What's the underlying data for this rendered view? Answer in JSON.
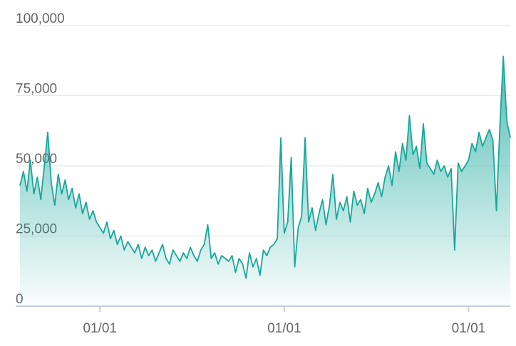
{
  "chart_data": {
    "type": "area",
    "color": "#17a79b",
    "grid": true,
    "ylim": [
      0,
      100000
    ],
    "yticks": [
      0,
      {
        "value": 25000,
        "label": "25,000"
      },
      {
        "value": 50000,
        "label": "50,000"
      },
      {
        "value": 75000,
        "label": "75,000"
      },
      {
        "value": 100000,
        "label": "100,000"
      }
    ],
    "categories": [
      null,
      null,
      null,
      null,
      null,
      null,
      null,
      null,
      null,
      null,
      null,
      null,
      null,
      null,
      null,
      null,
      null,
      null,
      null,
      null,
      null,
      null,
      null,
      "01/01",
      null,
      null,
      null,
      null,
      null,
      null,
      null,
      null,
      null,
      null,
      null,
      null,
      null,
      null,
      null,
      null,
      null,
      null,
      null,
      null,
      null,
      null,
      null,
      null,
      null,
      null,
      null,
      null,
      null,
      null,
      null,
      null,
      null,
      null,
      null,
      null,
      null,
      null,
      null,
      null,
      null,
      null,
      null,
      null,
      null,
      null,
      null,
      null,
      null,
      null,
      null,
      null,
      "01/01",
      null,
      null,
      null,
      null,
      null,
      null,
      null,
      null,
      null,
      null,
      null,
      null,
      null,
      null,
      null,
      null,
      null,
      null,
      null,
      null,
      null,
      null,
      null,
      null,
      null,
      null,
      null,
      null,
      null,
      null,
      null,
      null,
      null,
      null,
      null,
      null,
      null,
      null,
      null,
      null,
      null,
      null,
      null,
      null,
      null,
      null,
      null,
      null,
      null,
      null,
      null,
      null,
      "01/01",
      null,
      null,
      null,
      null,
      null,
      null,
      null,
      null,
      null,
      null,
      null,
      null
    ],
    "values": [
      43000,
      48000,
      41000,
      52000,
      40000,
      46000,
      38000,
      50000,
      62000,
      44000,
      36000,
      47000,
      40000,
      45000,
      38000,
      42000,
      35000,
      40000,
      33000,
      37000,
      31000,
      34000,
      30000,
      28000,
      26000,
      30000,
      24000,
      27000,
      22000,
      25000,
      20000,
      23000,
      21000,
      19000,
      22000,
      17000,
      21000,
      18000,
      20000,
      16000,
      19000,
      22000,
      17000,
      15000,
      20000,
      18000,
      16000,
      19000,
      17000,
      21000,
      18000,
      16000,
      20000,
      22000,
      29000,
      17000,
      19000,
      15000,
      18000,
      17000,
      16000,
      18000,
      12000,
      17000,
      15000,
      10000,
      19000,
      14000,
      17000,
      11000,
      20000,
      18000,
      21000,
      22000,
      24000,
      60000,
      26000,
      30000,
      53000,
      14000,
      28000,
      32000,
      60000,
      30000,
      35000,
      27000,
      33000,
      38000,
      29000,
      36000,
      47000,
      31000,
      37000,
      34000,
      39000,
      30000,
      41000,
      36000,
      38000,
      33000,
      42000,
      37000,
      40000,
      44000,
      39000,
      46000,
      50000,
      43000,
      55000,
      48000,
      58000,
      52000,
      68000,
      54000,
      57000,
      49000,
      65000,
      51000,
      49000,
      47000,
      52000,
      48000,
      50000,
      46000,
      49000,
      20000,
      51000,
      48000,
      50000,
      52000,
      58000,
      55000,
      62000,
      57000,
      60000,
      63000,
      59000,
      34000,
      64000,
      89000,
      66000,
      60000
    ]
  }
}
